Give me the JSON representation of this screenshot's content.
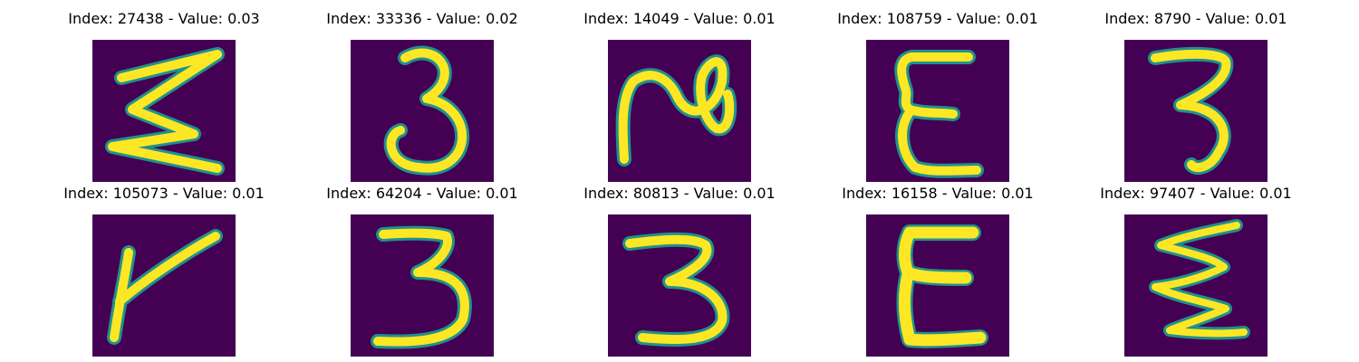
{
  "figure": {
    "colormap": "viridis",
    "background_color": "#ffffff",
    "image_background_color": "#440154",
    "stroke_mid_color": "#21918c",
    "stroke_high_color": "#fde725",
    "panels": [
      {
        "title": "Index: 27438 - Value: 0.03",
        "glyph": "Σ-like zigzag"
      },
      {
        "title": "Index: 33336 - Value: 0.02",
        "glyph": "3"
      },
      {
        "title": "Index: 14049 - Value: 0.01",
        "glyph": "N-loop"
      },
      {
        "title": "Index: 108759 - Value: 0.01",
        "glyph": "E"
      },
      {
        "title": "Index: 8790 - Value: 0.01",
        "glyph": "3"
      },
      {
        "title": "Index: 105073 - Value: 0.01",
        "glyph": "K-like stroke"
      },
      {
        "title": "Index: 64204 - Value: 0.01",
        "glyph": "3"
      },
      {
        "title": "Index: 80813 - Value: 0.01",
        "glyph": "3"
      },
      {
        "title": "Index: 16158 - Value: 0.01",
        "glyph": "E"
      },
      {
        "title": "Index: 97407 - Value: 0.01",
        "glyph": "Σ-like zigzag"
      }
    ]
  }
}
